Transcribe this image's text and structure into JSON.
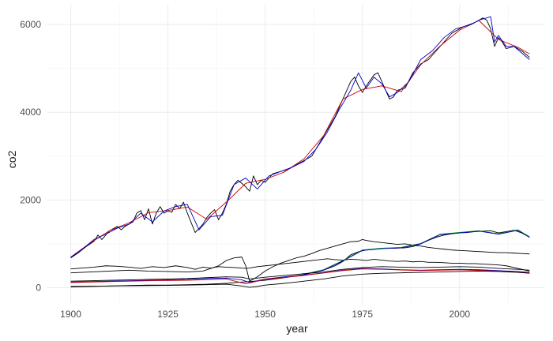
{
  "chart_data": {
    "type": "line",
    "title": "",
    "xlabel": "year",
    "ylabel": "co2",
    "xlim": [
      1894,
      2022
    ],
    "ylim": [
      -350,
      6450
    ],
    "x_ticks": [
      1900,
      1925,
      1950,
      1975,
      2000
    ],
    "y_ticks": [
      0,
      2000,
      4000,
      6000
    ],
    "x_minor_ticks": [
      1912.5,
      1937.5,
      1962.5,
      1987.5,
      2012.5
    ],
    "y_minor_ticks": [
      1000,
      3000,
      5000
    ],
    "grid": true,
    "legend": "none",
    "series": [
      {
        "color": "#000000",
        "x": [
          1900,
          1902,
          1904,
          1906,
          1907,
          1908,
          1910,
          1912,
          1913,
          1914,
          1916,
          1917,
          1918,
          1919,
          1920,
          1921,
          1922,
          1923,
          1924,
          1925,
          1926,
          1927,
          1928,
          1929,
          1930,
          1931,
          1932,
          1933,
          1934,
          1935,
          1936,
          1937,
          1938,
          1939,
          1940,
          1941,
          1942,
          1943,
          1944,
          1945,
          1946,
          1947,
          1948,
          1949,
          1950,
          1952,
          1954,
          1956,
          1958,
          1960,
          1962,
          1964,
          1966,
          1968,
          1970,
          1972,
          1973,
          1974,
          1975,
          1976,
          1978,
          1979,
          1980,
          1981,
          1982,
          1983,
          1984,
          1986,
          1988,
          1990,
          1992,
          1994,
          1996,
          1998,
          2000,
          2001,
          2002,
          2004,
          2005,
          2006,
          2007,
          2008,
          2009,
          2010,
          2011,
          2012,
          2014,
          2016,
          2018
        ],
        "y": [
          680,
          800,
          940,
          1060,
          1200,
          1100,
          1300,
          1400,
          1320,
          1400,
          1500,
          1700,
          1760,
          1550,
          1800,
          1450,
          1700,
          1850,
          1700,
          1750,
          1720,
          1900,
          1800,
          1950,
          1700,
          1480,
          1260,
          1350,
          1450,
          1600,
          1700,
          1780,
          1550,
          1700,
          1900,
          2200,
          2350,
          2450,
          2380,
          2300,
          2200,
          2550,
          2350,
          2450,
          2400,
          2600,
          2650,
          2700,
          2800,
          2900,
          3000,
          3300,
          3600,
          3900,
          4300,
          4700,
          4800,
          4600,
          4450,
          4600,
          4850,
          4900,
          4700,
          4500,
          4300,
          4350,
          4500,
          4550,
          4900,
          5100,
          5200,
          5400,
          5600,
          5800,
          5900,
          5950,
          5980,
          6050,
          6100,
          6150,
          6100,
          5900,
          5500,
          5700,
          5600,
          5450,
          5500,
          5400,
          5250
        ]
      },
      {
        "color": "#cc0000",
        "x": [
          1900,
          1905,
          1910,
          1915,
          1920,
          1925,
          1930,
          1935,
          1940,
          1945,
          1950,
          1955,
          1960,
          1965,
          1970,
          1975,
          1980,
          1985,
          1990,
          1995,
          2000,
          2005,
          2010,
          2015,
          2018
        ],
        "y": [
          700,
          1020,
          1300,
          1480,
          1710,
          1760,
          1840,
          1560,
          1950,
          2380,
          2470,
          2640,
          2940,
          3460,
          4300,
          4520,
          4600,
          4470,
          5080,
          5510,
          5870,
          6090,
          5660,
          5480,
          5330
        ]
      },
      {
        "color": "#0000cc",
        "x": [
          1900,
          1903,
          1906,
          1909,
          1912,
          1915,
          1918,
          1921,
          1924,
          1927,
          1930,
          1933,
          1936,
          1939,
          1942,
          1945,
          1948,
          1951,
          1954,
          1957,
          1960,
          1963,
          1966,
          1969,
          1972,
          1974,
          1976,
          1978,
          1980,
          1982,
          1984,
          1987,
          1990,
          1993,
          1996,
          1999,
          2001,
          2003,
          2005,
          2007,
          2008,
          2009,
          2010,
          2012,
          2014,
          2016,
          2018
        ],
        "y": [
          690,
          880,
          1100,
          1220,
          1360,
          1450,
          1700,
          1500,
          1750,
          1850,
          1900,
          1320,
          1620,
          1650,
          2350,
          2500,
          2250,
          2550,
          2650,
          2750,
          2880,
          3150,
          3550,
          4050,
          4500,
          4900,
          4550,
          4800,
          4650,
          4350,
          4450,
          4700,
          5200,
          5400,
          5700,
          5900,
          5950,
          6000,
          6100,
          6150,
          6180,
          5600,
          5750,
          5500,
          5500,
          5350,
          5200
        ]
      },
      {
        "color": "#000000",
        "x": [
          1900,
          1903,
          1906,
          1909,
          1912,
          1915,
          1918,
          1921,
          1924,
          1927,
          1930,
          1932,
          1934,
          1936,
          1938,
          1940,
          1942,
          1944,
          1945,
          1946,
          1948,
          1950,
          1952,
          1954,
          1956,
          1958,
          1960,
          1962,
          1964,
          1966,
          1968,
          1970,
          1972,
          1974,
          1976,
          1978,
          1980,
          1982,
          1984,
          1986,
          1988,
          1990,
          1992,
          1994,
          1996,
          1998,
          2000,
          2002,
          2004,
          2006,
          2008,
          2010,
          2012,
          2014,
          2016,
          2018
        ],
        "y": [
          430,
          450,
          470,
          500,
          490,
          470,
          440,
          480,
          460,
          500,
          460,
          420,
          470,
          450,
          480,
          470,
          460,
          450,
          440,
          450,
          480,
          500,
          520,
          540,
          560,
          580,
          600,
          620,
          640,
          660,
          640,
          630,
          650,
          640,
          620,
          650,
          630,
          610,
          600,
          610,
          590,
          600,
          580,
          580,
          570,
          560,
          560,
          550,
          550,
          540,
          530,
          520,
          500,
          460,
          420,
          380
        ]
      },
      {
        "color": "#000000",
        "x": [
          1900,
          1905,
          1910,
          1915,
          1920,
          1925,
          1930,
          1934,
          1938,
          1940,
          1942,
          1944,
          1945,
          1946,
          1948,
          1950,
          1952,
          1954,
          1956,
          1958,
          1960,
          1962,
          1964,
          1966,
          1968,
          1970,
          1972,
          1974,
          1975,
          1976,
          1978,
          1980,
          1982,
          1984,
          1986,
          1988,
          1990,
          1992,
          1994,
          1996,
          1998,
          2000,
          2002,
          2004,
          2006,
          2008,
          2010,
          2012,
          2014,
          2016,
          2018
        ],
        "y": [
          340,
          360,
          380,
          400,
          380,
          370,
          360,
          380,
          500,
          620,
          680,
          700,
          500,
          150,
          250,
          380,
          480,
          560,
          620,
          680,
          720,
          780,
          850,
          900,
          950,
          1000,
          1050,
          1060,
          1100,
          1080,
          1050,
          1030,
          1010,
          990,
          1000,
          970,
          950,
          920,
          900,
          880,
          860,
          850,
          840,
          830,
          820,
          810,
          800,
          800,
          790,
          780,
          770
        ]
      },
      {
        "color": "#000000",
        "x": [
          1900,
          1905,
          1910,
          1915,
          1920,
          1925,
          1930,
          1935,
          1940,
          1944,
          1946,
          1950,
          1955,
          1960,
          1965,
          1968,
          1970,
          1972,
          1974,
          1976,
          1978,
          1980,
          1983,
          1986,
          1988,
          1990,
          1992,
          1994,
          1996,
          1998,
          2000,
          2002,
          2004,
          2006,
          2008,
          2010,
          2012,
          2014,
          2016,
          2018
        ],
        "y": [
          20,
          30,
          40,
          50,
          60,
          60,
          70,
          80,
          100,
          130,
          140,
          170,
          230,
          300,
          400,
          500,
          600,
          750,
          820,
          860,
          880,
          900,
          900,
          910,
          940,
          1000,
          1080,
          1150,
          1200,
          1230,
          1250,
          1260,
          1280,
          1290,
          1300,
          1250,
          1280,
          1310,
          1250,
          1150
        ]
      },
      {
        "color": "#009900",
        "x": [
          1960,
          1965,
          1970,
          1975,
          1980,
          1985,
          1990,
          1995,
          2000,
          2005,
          2010,
          2015,
          2018
        ],
        "y": [
          310,
          410,
          620,
          860,
          900,
          920,
          1010,
          1220,
          1260,
          1300,
          1230,
          1320,
          1160
        ]
      },
      {
        "color": "#0000cc",
        "x": [
          1960,
          1965,
          1970,
          1975,
          1980,
          1985,
          1990,
          1995,
          2000,
          2005,
          2010,
          2015,
          2018
        ],
        "y": [
          300,
          400,
          610,
          850,
          890,
          910,
          1000,
          1210,
          1250,
          1290,
          1220,
          1310,
          1150
        ]
      },
      {
        "color": "#000000",
        "x": [
          1900,
          1905,
          1910,
          1915,
          1920,
          1925,
          1930,
          1935,
          1940,
          1944,
          1946,
          1950,
          1955,
          1960,
          1965,
          1970,
          1975,
          1980,
          1985,
          1990,
          1995,
          2000,
          2005,
          2010,
          2015,
          2018
        ],
        "y": [
          150,
          160,
          170,
          180,
          190,
          200,
          210,
          230,
          250,
          240,
          200,
          240,
          280,
          320,
          360,
          420,
          460,
          480,
          470,
          460,
          470,
          480,
          470,
          440,
          420,
          400
        ]
      },
      {
        "color": "#0000cc",
        "x": [
          1900,
          1905,
          1910,
          1915,
          1920,
          1925,
          1930,
          1935,
          1940,
          1944,
          1946,
          1950,
          1955,
          1960,
          1965,
          1970,
          1975,
          1980,
          1985,
          1990,
          1995,
          2000,
          2005,
          2010,
          2015,
          2018
        ],
        "y": [
          130,
          140,
          150,
          160,
          170,
          180,
          190,
          210,
          220,
          180,
          120,
          200,
          250,
          290,
          340,
          400,
          440,
          430,
          410,
          400,
          410,
          420,
          410,
          390,
          370,
          350
        ]
      },
      {
        "color": "#cc0000",
        "x": [
          1900,
          1910,
          1920,
          1930,
          1940,
          1945,
          1950,
          1960,
          1970,
          1975,
          1980,
          1990,
          2000,
          2010,
          2018
        ],
        "y": [
          120,
          140,
          160,
          170,
          200,
          90,
          190,
          280,
          390,
          430,
          420,
          390,
          410,
          380,
          340
        ]
      },
      {
        "color": "#000000",
        "x": [
          1900,
          1905,
          1910,
          1915,
          1920,
          1925,
          1930,
          1935,
          1940,
          1944,
          1946,
          1948,
          1950,
          1955,
          1960,
          1965,
          1970,
          1975,
          1980,
          1985,
          1990,
          1995,
          2000,
          2005,
          2010,
          2015,
          2018
        ],
        "y": [
          30,
          35,
          40,
          45,
          50,
          55,
          60,
          70,
          80,
          40,
          10,
          30,
          60,
          100,
          150,
          200,
          270,
          310,
          330,
          340,
          350,
          360,
          370,
          380,
          370,
          350,
          330
        ]
      }
    ]
  }
}
